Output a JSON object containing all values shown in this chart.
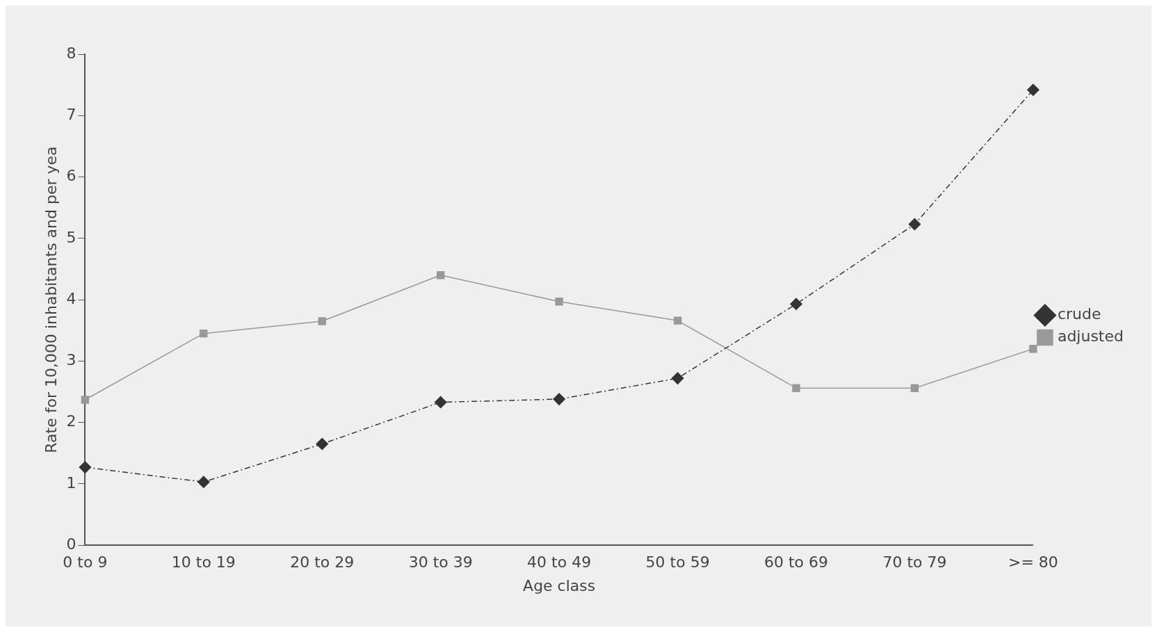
{
  "chart_data": {
    "type": "line",
    "xlabel": "Age class",
    "ylabel": "Rate for 10,000 inhabitants and per yea",
    "categories": [
      "0 to 9",
      "10 to 19",
      "20 to 29",
      "30 to 39",
      "40 to 49",
      "50 to 59",
      "60 to 69",
      "70 to 79",
      ">= 80"
    ],
    "series": [
      {
        "name": "crude",
        "color": "#333333",
        "marker": "diamond",
        "line_style": "dashed",
        "values": [
          1.27,
          1.03,
          1.65,
          2.33,
          2.38,
          2.72,
          3.93,
          5.23,
          7.42
        ]
      },
      {
        "name": "adjusted",
        "color": "#999999",
        "marker": "square",
        "line_style": "solid",
        "values": [
          2.37,
          3.45,
          3.65,
          4.4,
          3.97,
          3.66,
          2.56,
          2.56,
          3.2
        ]
      }
    ],
    "ylim": [
      0,
      8
    ],
    "yticks": [
      0,
      1,
      2,
      3,
      4,
      5,
      6,
      7,
      8
    ],
    "grid": false,
    "legend": "right"
  }
}
